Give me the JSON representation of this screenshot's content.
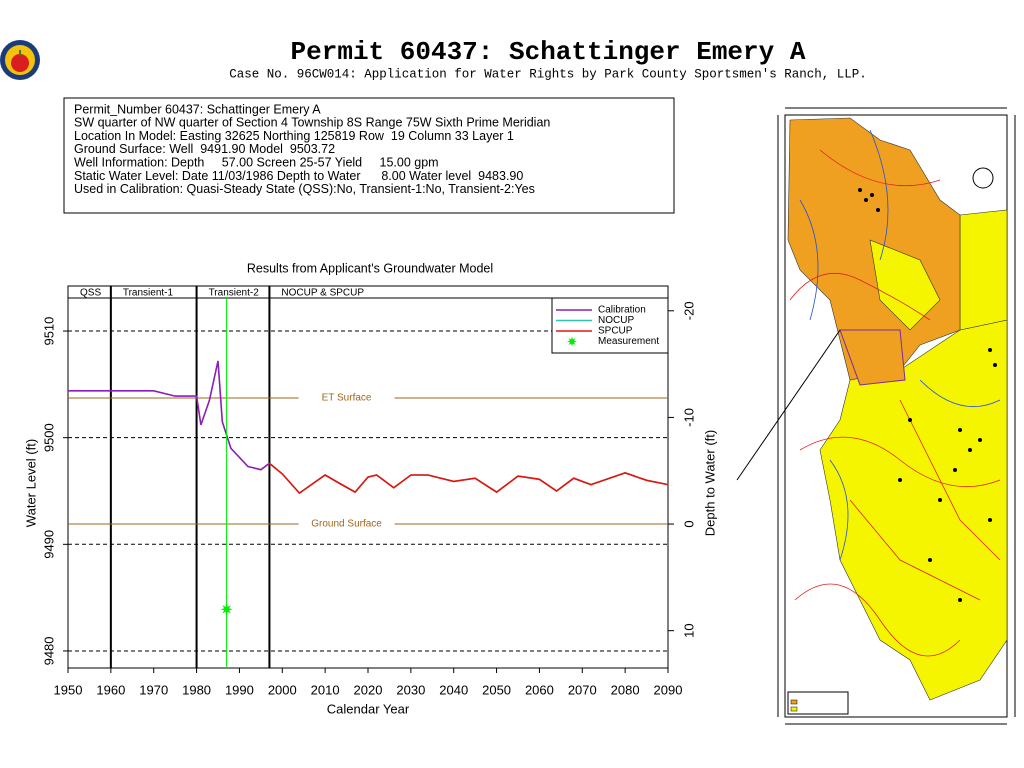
{
  "header": {
    "title": "Permit 60437:   Schattinger Emery A",
    "subtitle": "Case No. 96CW014: Application for Water Rights by Park County Sportsmen's Ranch, LLP."
  },
  "info": {
    "lines": [
      "Permit_Number 60437: Schattinger Emery A",
      "SW quarter of NW quarter of Section 4 Township 8S Range 75W Sixth Prime Meridian",
      "Location In Model: Easting 32625 Northing 125819 Row  19 Column 33 Layer 1",
      "Ground Surface: Well  9491.90 Model  9503.72",
      "Well Information: Depth     57.00 Screen 25-57 Yield     15.00 gpm",
      "Static Water Level: Date 11/03/1986 Depth to Water      8.00 Water level  9483.90",
      "Used in Calibration: Quasi-Steady State (QSS):No, Transient-1:No, Transient-2:Yes"
    ]
  },
  "chart_data": {
    "type": "line",
    "title": "Results from Applicant's Groundwater Model",
    "x_label": "Calendar Year",
    "y_label": "Water Level (ft)",
    "y2_label": "Depth to Water (ft)",
    "xlim": [
      1950,
      2090
    ],
    "xticks": [
      1950,
      1960,
      1970,
      1980,
      1990,
      2000,
      2010,
      2020,
      2030,
      2040,
      2050,
      2060,
      2070,
      2080,
      2090
    ],
    "ylim": [
      9478.4,
      9513.1
    ],
    "yticks": [
      9480,
      9490,
      9500,
      9510
    ],
    "y2lim": [
      13.5,
      -21.2
    ],
    "y2ticks": [
      -20,
      -10,
      0,
      10
    ],
    "grid": true,
    "legend": "upper right",
    "periods": [
      {
        "label": "QSS",
        "start": 1950,
        "end": 1960
      },
      {
        "label": "Transient-1",
        "start": 1960,
        "end": 1980
      },
      {
        "label": "Transient-2",
        "start": 1980,
        "end": 1997
      },
      {
        "label": "NOCUP  &  SPCUP",
        "start": 1997,
        "end": 2090
      }
    ],
    "reference_lines": [
      {
        "label": "ET Surface",
        "value": 9503.72,
        "color": "#a0661a"
      },
      {
        "label": "Ground Surface",
        "value": 9491.9,
        "color": "#a0661a"
      }
    ],
    "series": [
      {
        "name": "Calibration",
        "color": "#8b1fb5",
        "x": [
          1950,
          1970,
          1975,
          1980,
          1981,
          1983,
          1985,
          1986,
          1988,
          1992,
          1995,
          1997
        ],
        "values": [
          9504.4,
          9504.4,
          9503.9,
          9503.9,
          9501.2,
          9503.5,
          9507.2,
          9501.5,
          9499.0,
          9497.3,
          9497.0,
          9497.6
        ]
      },
      {
        "name": "NOCUP",
        "color": "#2ec4b6",
        "x": [
          1997,
          2000,
          2004,
          2010,
          2013,
          2017,
          2020,
          2022,
          2026,
          2030,
          2034,
          2040,
          2045,
          2050,
          2055,
          2060,
          2064,
          2068,
          2072,
          2075,
          2080,
          2085,
          2090
        ],
        "values": [
          9497.6,
          9496.6,
          9494.8,
          9496.5,
          9495.8,
          9494.9,
          9496.3,
          9496.5,
          9495.3,
          9496.5,
          9496.5,
          9495.9,
          9496.2,
          9494.9,
          9496.4,
          9496.1,
          9495.0,
          9496.2,
          9495.6,
          9496.0,
          9496.7,
          9496.0,
          9495.6
        ]
      },
      {
        "name": "SPCUP",
        "color": "#e8120c",
        "x": [
          1997,
          2000,
          2004,
          2010,
          2013,
          2017,
          2020,
          2022,
          2026,
          2030,
          2034,
          2040,
          2045,
          2050,
          2055,
          2060,
          2064,
          2068,
          2072,
          2075,
          2080,
          2085,
          2090
        ],
        "values": [
          9497.6,
          9496.6,
          9494.8,
          9496.5,
          9495.8,
          9494.9,
          9496.3,
          9496.5,
          9495.3,
          9496.5,
          9496.5,
          9495.9,
          9496.2,
          9494.9,
          9496.4,
          9496.1,
          9495.0,
          9496.2,
          9495.6,
          9496.0,
          9496.7,
          9496.0,
          9495.6
        ]
      },
      {
        "name": "Measurement",
        "color": "#00ee00",
        "marker": "star",
        "x": [
          1987
        ],
        "values": [
          9483.9
        ]
      }
    ]
  }
}
